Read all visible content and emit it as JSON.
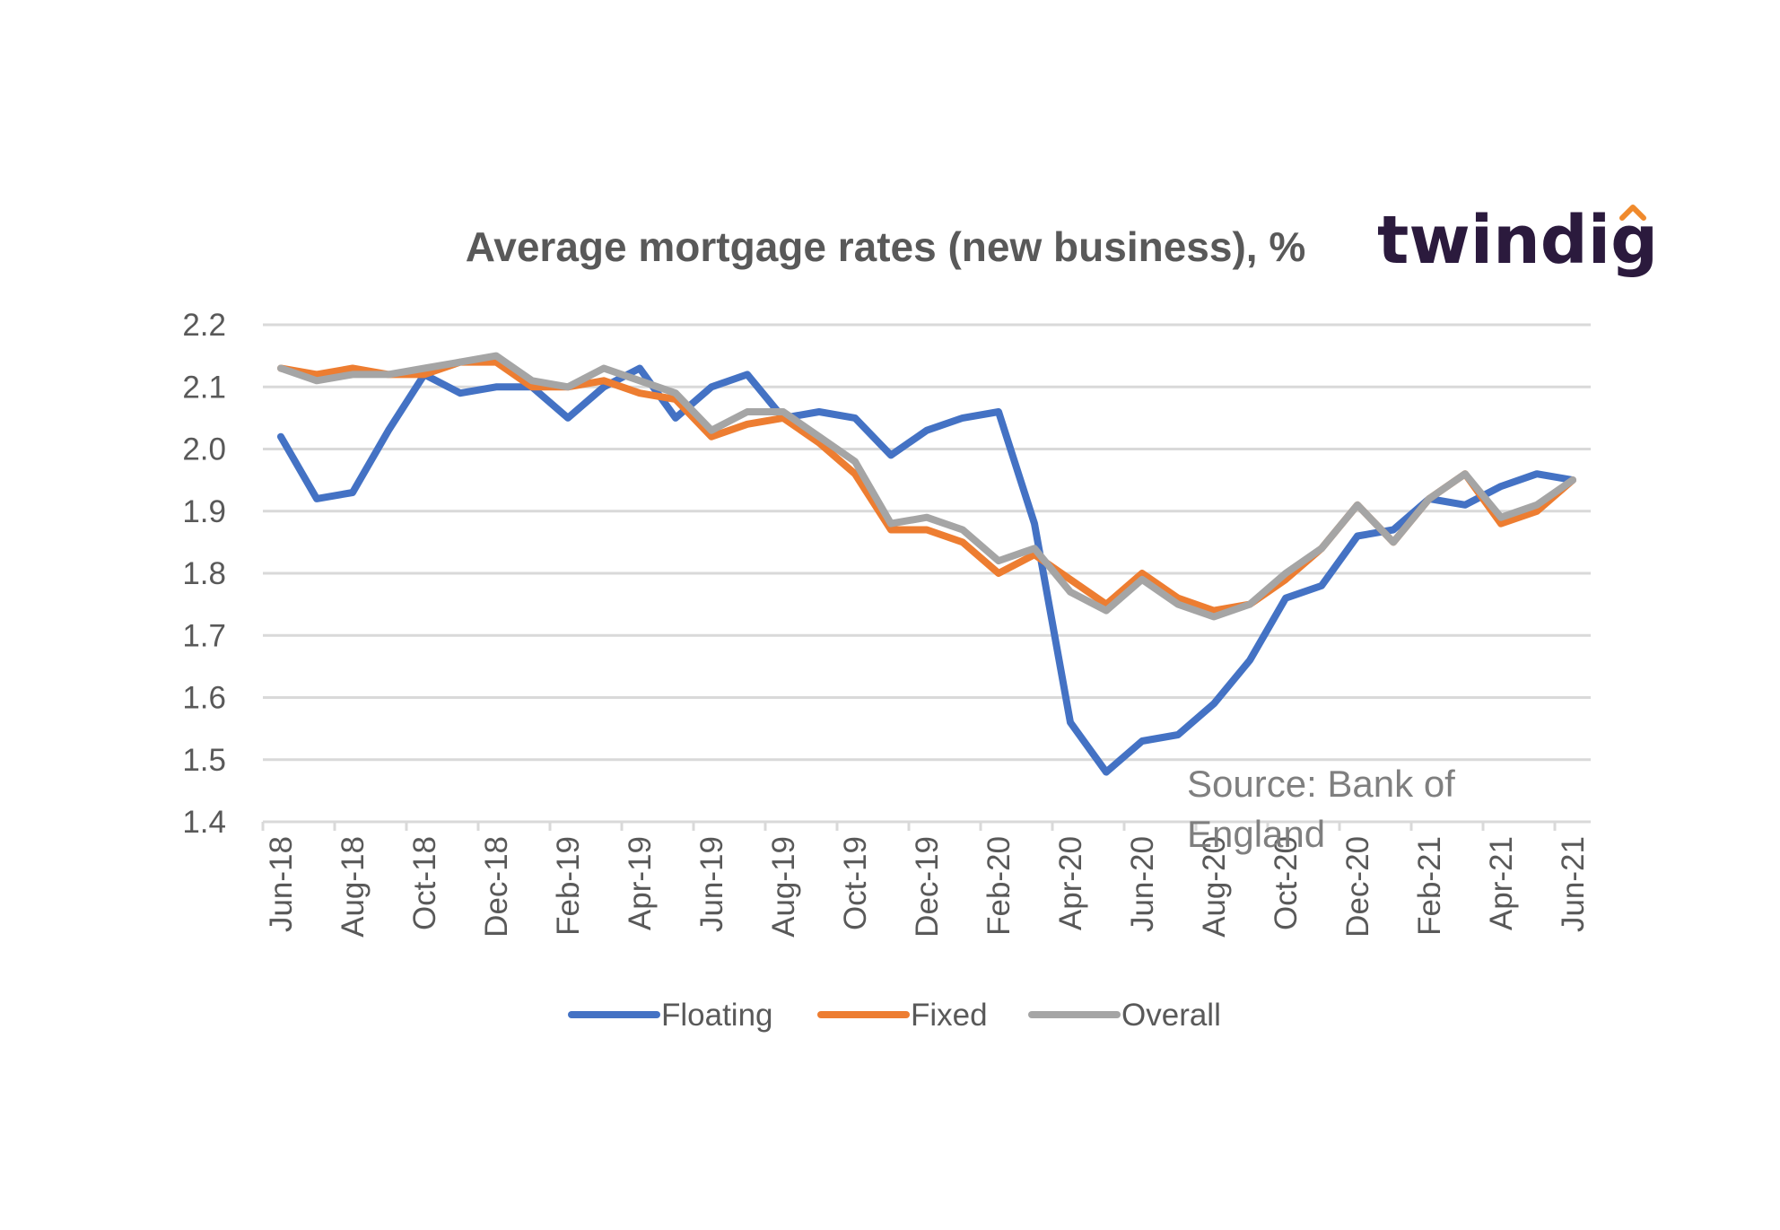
{
  "logo": {
    "text": "twindig",
    "accent_color": "#f08a2c"
  },
  "source_note": {
    "line1": "Source: Bank of",
    "line2": "England"
  },
  "chart_data": {
    "type": "line",
    "title": "Average mortgage rates (new business), %",
    "xlabel": "",
    "ylabel": "",
    "ylim": [
      1.4,
      2.2
    ],
    "yticks": [
      "2.2",
      "2.1",
      "2.0",
      "1.9",
      "1.8",
      "1.7",
      "1.6",
      "1.5",
      "1.4"
    ],
    "grid": true,
    "legend_position": "bottom",
    "x": [
      "Jun-18",
      "Jul-18",
      "Aug-18",
      "Sep-18",
      "Oct-18",
      "Nov-18",
      "Dec-18",
      "Jan-19",
      "Feb-19",
      "Mar-19",
      "Apr-19",
      "May-19",
      "Jun-19",
      "Jul-19",
      "Aug-19",
      "Sep-19",
      "Oct-19",
      "Nov-19",
      "Dec-19",
      "Jan-20",
      "Feb-20",
      "Mar-20",
      "Apr-20",
      "May-20",
      "Jun-20",
      "Jul-20",
      "Aug-20",
      "Sep-20",
      "Oct-20",
      "Nov-20",
      "Dec-20",
      "Jan-21",
      "Feb-21",
      "Mar-21",
      "Apr-21",
      "May-21",
      "Jun-21"
    ],
    "x_tick_labels": [
      "Jun-18",
      "Aug-18",
      "Oct-18",
      "Dec-18",
      "Feb-19",
      "Apr-19",
      "Jun-19",
      "Aug-19",
      "Oct-19",
      "Dec-19",
      "Feb-20",
      "Apr-20",
      "Jun-20",
      "Aug-20",
      "Oct-20",
      "Dec-20",
      "Feb-21",
      "Apr-21",
      "Jun-21"
    ],
    "series": [
      {
        "name": "Floating",
        "color": "#4472c4",
        "values": [
          2.02,
          1.92,
          1.93,
          2.03,
          2.12,
          2.09,
          2.1,
          2.1,
          2.05,
          2.1,
          2.13,
          2.05,
          2.1,
          2.12,
          2.05,
          2.06,
          2.05,
          1.99,
          2.03,
          2.05,
          2.06,
          1.88,
          1.56,
          1.48,
          1.53,
          1.54,
          1.59,
          1.66,
          1.76,
          1.78,
          1.86,
          1.87,
          1.92,
          1.91,
          1.94,
          1.96,
          1.95
        ]
      },
      {
        "name": "Fixed",
        "color": "#ed7d31",
        "values": [
          2.13,
          2.12,
          2.13,
          2.12,
          2.12,
          2.14,
          2.14,
          2.1,
          2.1,
          2.11,
          2.09,
          2.08,
          2.02,
          2.04,
          2.05,
          2.01,
          1.96,
          1.87,
          1.87,
          1.85,
          1.8,
          1.83,
          1.79,
          1.75,
          1.8,
          1.76,
          1.74,
          1.75,
          1.79,
          1.84,
          1.91,
          1.85,
          1.92,
          1.96,
          1.88,
          1.9,
          1.95
        ]
      },
      {
        "name": "Overall",
        "color": "#a5a5a5",
        "values": [
          2.13,
          2.11,
          2.12,
          2.12,
          2.13,
          2.14,
          2.15,
          2.11,
          2.1,
          2.13,
          2.11,
          2.09,
          2.03,
          2.06,
          2.06,
          2.02,
          1.98,
          1.88,
          1.89,
          1.87,
          1.82,
          1.84,
          1.77,
          1.74,
          1.79,
          1.75,
          1.73,
          1.75,
          1.8,
          1.84,
          1.91,
          1.85,
          1.92,
          1.96,
          1.89,
          1.91,
          1.95
        ]
      }
    ]
  }
}
